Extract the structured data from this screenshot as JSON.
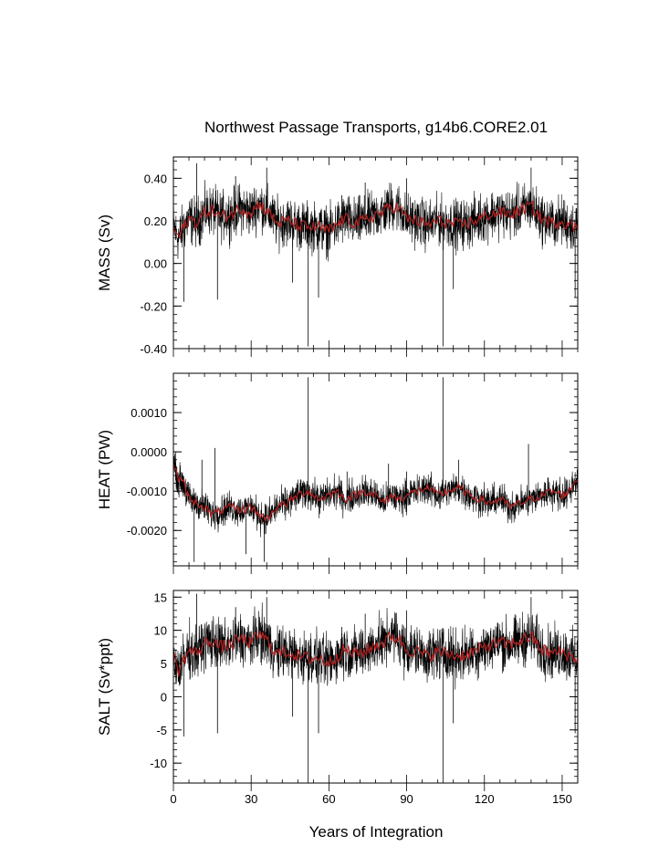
{
  "chart_data": {
    "title": "Northwest Passage Transports, g14b6.CORE2.01",
    "xlabel": "Years of Integration",
    "xlim": [
      0,
      156
    ],
    "xticks": [
      0,
      30,
      60,
      90,
      120,
      150
    ],
    "series_colors": {
      "monthly": "#000000",
      "annual_mean": "#b22222"
    },
    "panels": [
      {
        "type": "line",
        "ylabel": "MASS (Sv)",
        "ylim": [
          -0.4,
          0.5
        ],
        "yticks": [
          -0.4,
          -0.2,
          0.0,
          0.2,
          0.4
        ],
        "ytick_labels": [
          "-0.40",
          "-0.20",
          "0.00",
          "0.20",
          "0.40"
        ],
        "mean_curve": [
          [
            0,
            0.17
          ],
          [
            2,
            0.12
          ],
          [
            4,
            0.17
          ],
          [
            6,
            0.21
          ],
          [
            9,
            0.19
          ],
          [
            12,
            0.24
          ],
          [
            15,
            0.25
          ],
          [
            18,
            0.22
          ],
          [
            22,
            0.23
          ],
          [
            26,
            0.26
          ],
          [
            30,
            0.24
          ],
          [
            33,
            0.28
          ],
          [
            36,
            0.25
          ],
          [
            40,
            0.19
          ],
          [
            44,
            0.2
          ],
          [
            48,
            0.18
          ],
          [
            52,
            0.17
          ],
          [
            56,
            0.17
          ],
          [
            60,
            0.15
          ],
          [
            63,
            0.18
          ],
          [
            66,
            0.21
          ],
          [
            70,
            0.19
          ],
          [
            74,
            0.2
          ],
          [
            78,
            0.23
          ],
          [
            81,
            0.24
          ],
          [
            84,
            0.27
          ],
          [
            87,
            0.26
          ],
          [
            90,
            0.21
          ],
          [
            94,
            0.2
          ],
          [
            98,
            0.18
          ],
          [
            102,
            0.2
          ],
          [
            106,
            0.19
          ],
          [
            110,
            0.18
          ],
          [
            114,
            0.19
          ],
          [
            118,
            0.21
          ],
          [
            122,
            0.23
          ],
          [
            126,
            0.24
          ],
          [
            130,
            0.23
          ],
          [
            134,
            0.25
          ],
          [
            138,
            0.27
          ],
          [
            142,
            0.21
          ],
          [
            146,
            0.19
          ],
          [
            150,
            0.2
          ],
          [
            153,
            0.18
          ],
          [
            155,
            0.17
          ]
        ],
        "noise_amplitude": 0.17,
        "spikes": [
          [
            4,
            -0.18
          ],
          [
            9,
            0.47
          ],
          [
            17,
            -0.17
          ],
          [
            24,
            0.41
          ],
          [
            36,
            0.45
          ],
          [
            46,
            -0.09
          ],
          [
            52,
            -0.39
          ],
          [
            56,
            -0.16
          ],
          [
            65,
            0.32
          ],
          [
            74,
            0.38
          ],
          [
            90,
            0.4
          ],
          [
            104,
            -0.39
          ],
          [
            108,
            -0.12
          ],
          [
            138,
            0.45
          ],
          [
            155,
            -0.16
          ]
        ]
      },
      {
        "type": "line",
        "ylabel": "HEAT (PW)",
        "ylim": [
          -0.0029,
          0.002
        ],
        "yticks": [
          -0.002,
          -0.001,
          0.0,
          0.001
        ],
        "ytick_labels": [
          "-0.0020",
          "-0.0010",
          "0.0000",
          "0.0010"
        ],
        "mean_curve": [
          [
            0,
            -0.0003
          ],
          [
            2,
            -0.0007
          ],
          [
            4,
            -0.0008
          ],
          [
            6,
            -0.0012
          ],
          [
            9,
            -0.0013
          ],
          [
            12,
            -0.0014
          ],
          [
            15,
            -0.0016
          ],
          [
            18,
            -0.0015
          ],
          [
            22,
            -0.0014
          ],
          [
            26,
            -0.0015
          ],
          [
            30,
            -0.0014
          ],
          [
            33,
            -0.0016
          ],
          [
            36,
            -0.0017
          ],
          [
            40,
            -0.0014
          ],
          [
            44,
            -0.0013
          ],
          [
            48,
            -0.0011
          ],
          [
            52,
            -0.001
          ],
          [
            56,
            -0.0012
          ],
          [
            60,
            -0.0011
          ],
          [
            63,
            -0.001
          ],
          [
            66,
            -0.0012
          ],
          [
            70,
            -0.0011
          ],
          [
            74,
            -0.001
          ],
          [
            78,
            -0.0011
          ],
          [
            81,
            -0.0013
          ],
          [
            84,
            -0.0011
          ],
          [
            87,
            -0.0012
          ],
          [
            90,
            -0.0011
          ],
          [
            94,
            -0.001
          ],
          [
            98,
            -0.0009
          ],
          [
            102,
            -0.0011
          ],
          [
            106,
            -0.001
          ],
          [
            110,
            -0.0009
          ],
          [
            114,
            -0.0011
          ],
          [
            118,
            -0.0012
          ],
          [
            122,
            -0.0013
          ],
          [
            126,
            -0.0012
          ],
          [
            130,
            -0.0014
          ],
          [
            134,
            -0.0013
          ],
          [
            138,
            -0.0012
          ],
          [
            142,
            -0.0011
          ],
          [
            146,
            -0.001
          ],
          [
            150,
            -0.0011
          ],
          [
            153,
            -0.001
          ],
          [
            155,
            -0.0007
          ]
        ],
        "noise_amplitude": 0.0006,
        "spikes": [
          [
            8,
            -0.0028
          ],
          [
            11,
            -0.0002
          ],
          [
            16,
            0.0001
          ],
          [
            28,
            -0.0026
          ],
          [
            35,
            -0.0028
          ],
          [
            52,
            0.0019
          ],
          [
            67,
            -0.0005
          ],
          [
            83,
            -0.0003
          ],
          [
            90,
            -0.0005
          ],
          [
            104,
            0.0019
          ],
          [
            110,
            -0.0002
          ],
          [
            137,
            0.0002
          ]
        ]
      },
      {
        "type": "line",
        "ylabel": "SALT (Sv*ppt)",
        "ylim": [
          -13,
          16
        ],
        "yticks": [
          -10,
          -5,
          0,
          5,
          10,
          15
        ],
        "ytick_labels": [
          "-10",
          "-5",
          "0",
          "5",
          "10",
          "15"
        ],
        "mean_curve": [
          [
            0,
            6
          ],
          [
            2,
            4
          ],
          [
            4,
            5.5
          ],
          [
            6,
            7
          ],
          [
            9,
            6.5
          ],
          [
            12,
            8
          ],
          [
            15,
            8.5
          ],
          [
            18,
            7.5
          ],
          [
            22,
            7.8
          ],
          [
            26,
            8.8
          ],
          [
            30,
            8
          ],
          [
            33,
            9.5
          ],
          [
            36,
            8.5
          ],
          [
            40,
            6.5
          ],
          [
            44,
            6.8
          ],
          [
            48,
            6.1
          ],
          [
            52,
            5.8
          ],
          [
            56,
            5.8
          ],
          [
            60,
            5.1
          ],
          [
            63,
            6.1
          ],
          [
            66,
            7.1
          ],
          [
            70,
            6.5
          ],
          [
            74,
            6.8
          ],
          [
            78,
            7.8
          ],
          [
            81,
            8.1
          ],
          [
            84,
            9.1
          ],
          [
            87,
            8.8
          ],
          [
            90,
            7.1
          ],
          [
            94,
            6.8
          ],
          [
            98,
            6.1
          ],
          [
            102,
            6.8
          ],
          [
            106,
            6.5
          ],
          [
            110,
            6.1
          ],
          [
            114,
            6.5
          ],
          [
            118,
            7.1
          ],
          [
            122,
            7.8
          ],
          [
            126,
            8.1
          ],
          [
            130,
            7.8
          ],
          [
            134,
            8.5
          ],
          [
            138,
            9.1
          ],
          [
            142,
            7.1
          ],
          [
            146,
            6.5
          ],
          [
            150,
            6.8
          ],
          [
            153,
            6.1
          ],
          [
            155,
            5.8
          ]
        ],
        "noise_amplitude": 5.8,
        "spikes": [
          [
            4,
            -6
          ],
          [
            9,
            15.5
          ],
          [
            17,
            -5.5
          ],
          [
            24,
            13.5
          ],
          [
            36,
            15
          ],
          [
            46,
            -3
          ],
          [
            52,
            -13
          ],
          [
            56,
            -5.5
          ],
          [
            65,
            10.5
          ],
          [
            74,
            12.5
          ],
          [
            90,
            13
          ],
          [
            104,
            -13
          ],
          [
            108,
            -4
          ],
          [
            138,
            15
          ],
          [
            155,
            -5.5
          ]
        ]
      }
    ]
  }
}
